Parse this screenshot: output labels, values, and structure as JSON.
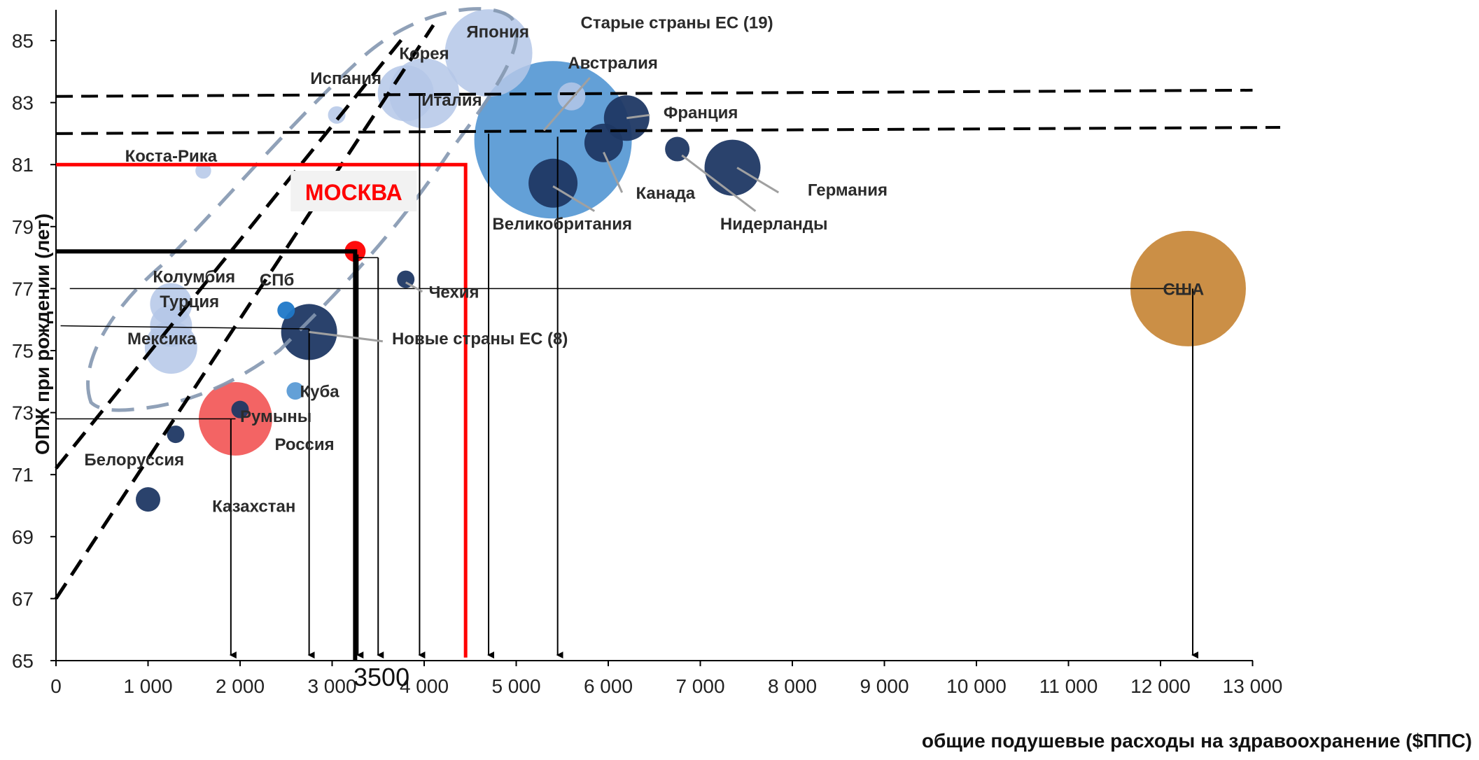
{
  "chart_data": {
    "type": "scatter",
    "subtype": "bubble",
    "xlabel": "общие подушевые расходы на здравоохранение ($ППС)",
    "ylabel": "ОПЖ при рождении (лет)",
    "xlim": [
      0,
      13000
    ],
    "ylim": [
      65,
      86
    ],
    "x_ticks": [
      0,
      1000,
      2000,
      3000,
      4000,
      5000,
      6000,
      7000,
      8000,
      9000,
      10000,
      11000,
      12000,
      13000
    ],
    "x_tick_labels": [
      "0",
      "1 000",
      "2 000",
      "3 000",
      "4 000",
      "5 000",
      "6 000",
      "7 000",
      "8 000",
      "9 000",
      "10 000",
      "11 000",
      "12 000",
      "13 000"
    ],
    "y_ticks": [
      65,
      67,
      69,
      71,
      73,
      75,
      77,
      79,
      81,
      83,
      85
    ],
    "y_tick_labels": [
      "65",
      "67",
      "69",
      "71",
      "73",
      "75",
      "77",
      "79",
      "81",
      "83",
      "85"
    ],
    "grid": false,
    "colors": {
      "dark_blue": "#1f3864",
      "light_blue": "#b4c7e7",
      "medium_blue": "#5b9bd5",
      "accent_blue": "#1f78c8",
      "russia_red": "#f25c5c",
      "moscow_red": "#ff0000",
      "usa_orange": "#c8893c",
      "grey_dash": "#8497b0"
    },
    "points": [
      {
        "label": "Япония",
        "x": 4700,
        "y": 84.6,
        "r": 5.0,
        "color": "light_blue"
      },
      {
        "label": "Корея",
        "x": 4000,
        "y": 83.3,
        "r": 4.0,
        "color": "light_blue"
      },
      {
        "label": "Испания",
        "x": 3050,
        "y": 82.6,
        "r": 1.0,
        "color": "light_blue"
      },
      {
        "label": "Италия",
        "x": 3800,
        "y": 83.3,
        "r": 3.2,
        "color": "light_blue"
      },
      {
        "label": "Старые страны ЕС (19)",
        "x": 5400,
        "y": 81.8,
        "r": 9.0,
        "color": "medium_blue"
      },
      {
        "label": "Австралия",
        "x": 5600,
        "y": 83.2,
        "r": 1.6,
        "color": "light_blue"
      },
      {
        "label": "Франция",
        "x": 6200,
        "y": 82.5,
        "r": 2.6,
        "color": "dark_blue"
      },
      {
        "label": "Канада",
        "x": 5950,
        "y": 81.7,
        "r": 2.2,
        "color": "dark_blue"
      },
      {
        "label": "Великобритания",
        "x": 5400,
        "y": 80.4,
        "r": 2.8,
        "color": "dark_blue"
      },
      {
        "label": "Нидерланды",
        "x": 6750,
        "y": 81.5,
        "r": 1.4,
        "color": "dark_blue"
      },
      {
        "label": "Германия",
        "x": 7350,
        "y": 80.9,
        "r": 3.2,
        "color": "dark_blue"
      },
      {
        "label": "Коста-Рика",
        "x": 1600,
        "y": 80.8,
        "r": 0.9,
        "color": "light_blue"
      },
      {
        "label": "Колумбия",
        "x": 1250,
        "y": 76.5,
        "r": 2.4,
        "color": "light_blue"
      },
      {
        "label": "Турция",
        "x": 1250,
        "y": 75.8,
        "r": 2.4,
        "color": "light_blue"
      },
      {
        "label": "Мексика",
        "x": 1250,
        "y": 75.1,
        "r": 3.0,
        "color": "light_blue"
      },
      {
        "label": "СПб",
        "x": 2500,
        "y": 76.3,
        "r": 1.0,
        "color": "accent_blue"
      },
      {
        "label": "Новые страны ЕС (8)",
        "x": 2750,
        "y": 75.6,
        "r": 3.2,
        "color": "dark_blue"
      },
      {
        "label": "Куба",
        "x": 2600,
        "y": 73.7,
        "r": 1.0,
        "color": "medium_blue"
      },
      {
        "label": "Румыны",
        "x": 2000,
        "y": 73.1,
        "r": 1.0,
        "color": "dark_blue"
      },
      {
        "label": "Россия",
        "x": 1950,
        "y": 72.8,
        "r": 4.2,
        "color": "russia_red"
      },
      {
        "label": "Белоруссия",
        "x": 1300,
        "y": 72.3,
        "r": 1.0,
        "color": "dark_blue"
      },
      {
        "label": "Казахстан",
        "x": 1000,
        "y": 70.2,
        "r": 1.4,
        "color": "dark_blue"
      },
      {
        "label": "Чехия",
        "x": 3800,
        "y": 77.3,
        "r": 1.0,
        "color": "dark_blue"
      },
      {
        "label": "МОСКВА",
        "x": 3250,
        "y": 78.2,
        "r": 1.2,
        "color": "moscow_red"
      },
      {
        "label": "США",
        "x": 12300,
        "y": 77.0,
        "r": 6.6,
        "color": "usa_orange"
      }
    ],
    "annotations": [
      "3500"
    ]
  }
}
